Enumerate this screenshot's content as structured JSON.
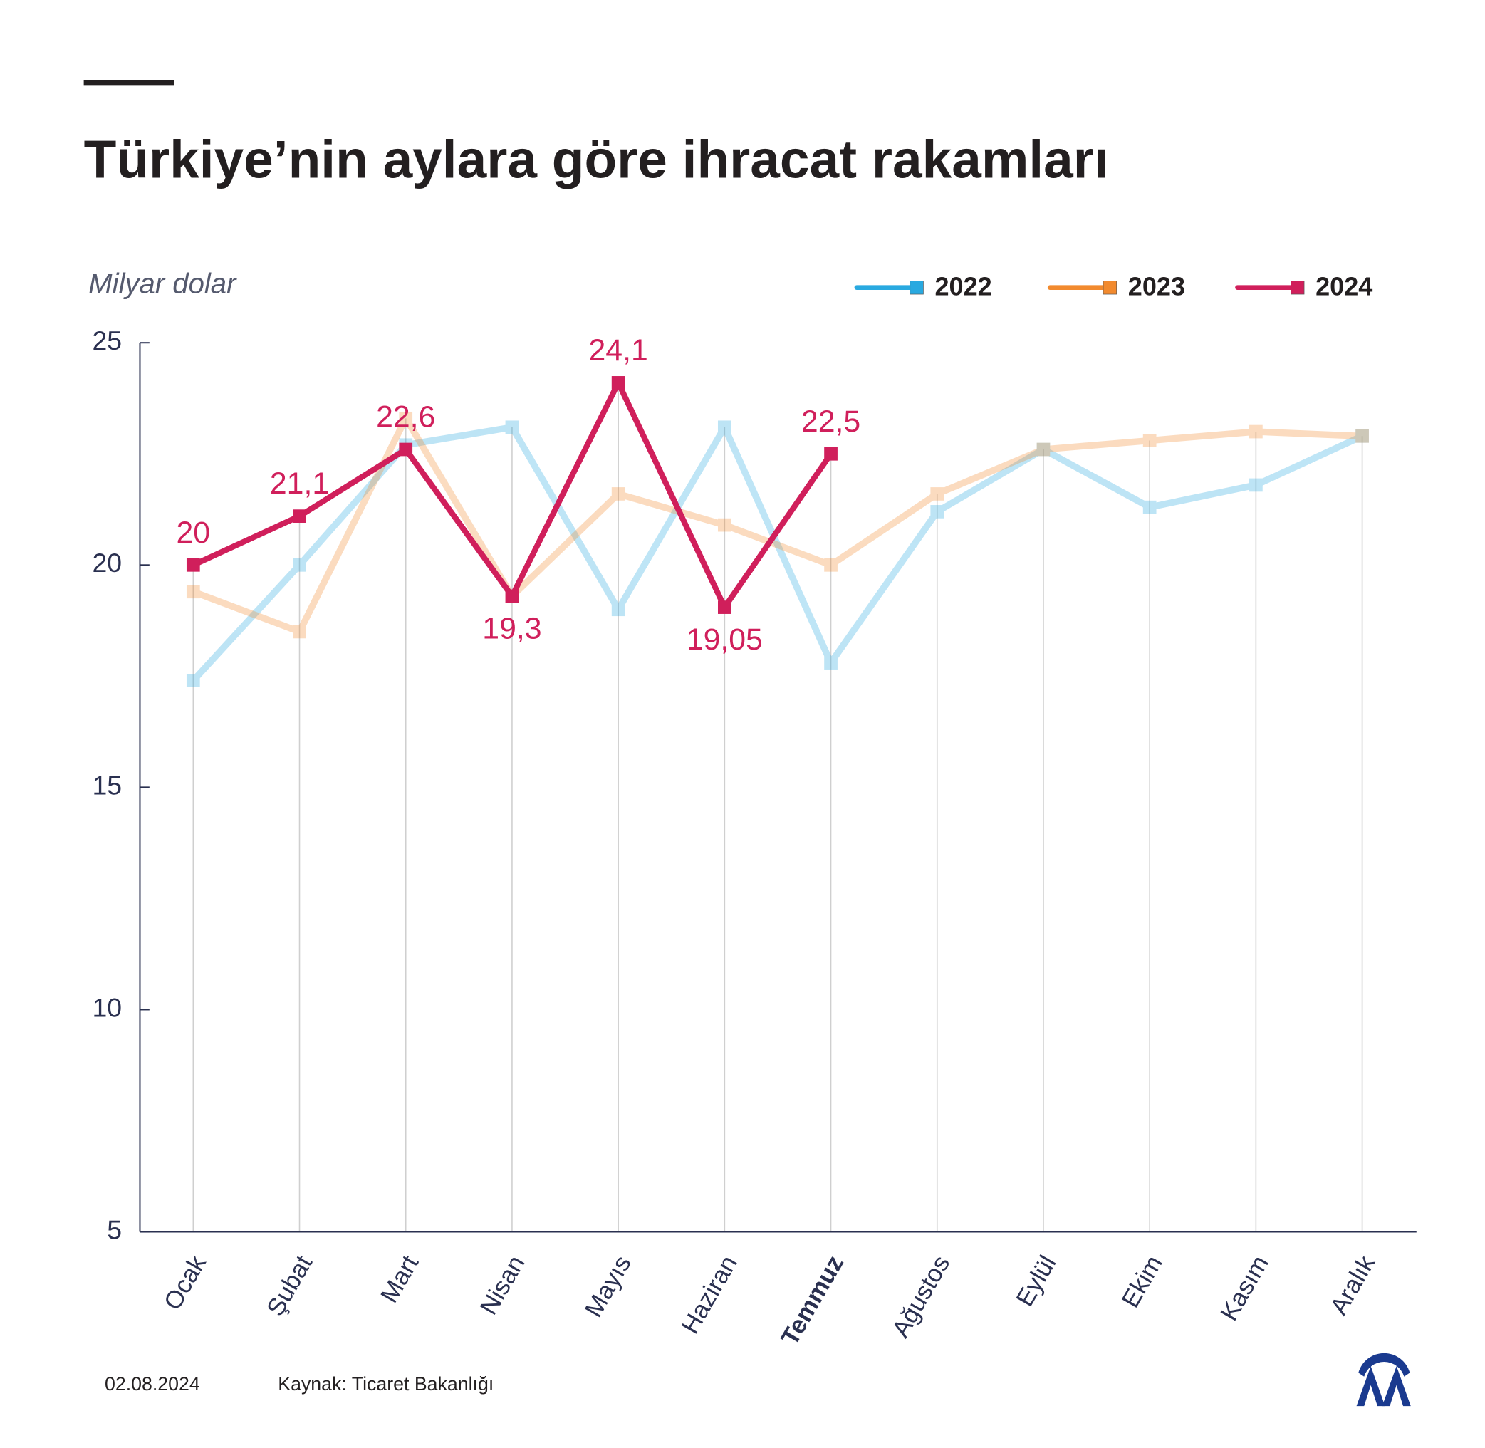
{
  "chart_data": {
    "type": "line",
    "title": "Türkiye’nin aylara göre ihracat rakamları",
    "y_axis_label": "Milyar dolar",
    "categories": [
      "Ocak",
      "Şubat",
      "Mart",
      "Nisan",
      "Mayıs",
      "Haziran",
      "Temmuz",
      "Ağustos",
      "Eylül",
      "Ekim",
      "Kasım",
      "Aralık"
    ],
    "series": [
      {
        "name": "2022",
        "color": "#29a9e0",
        "values": [
          17.4,
          20.0,
          22.7,
          23.1,
          19.0,
          23.1,
          17.8,
          21.2,
          22.6,
          21.3,
          21.8,
          22.9
        ]
      },
      {
        "name": "2023",
        "color": "#f28a2e",
        "values": [
          19.4,
          18.5,
          23.3,
          19.3,
          21.6,
          20.9,
          20.0,
          21.6,
          22.6,
          22.8,
          23.0,
          22.9
        ]
      },
      {
        "name": "2024",
        "color": "#d01f5b",
        "values": [
          20,
          21.1,
          22.6,
          19.3,
          24.1,
          19.05,
          22.5,
          null,
          null,
          null,
          null,
          null
        ],
        "value_labels": [
          "20",
          "21,1",
          "22,6",
          "19,3",
          "24,1",
          "19,05",
          "22,5",
          null,
          null,
          null,
          null,
          null
        ]
      }
    ],
    "ylim": [
      5,
      25
    ],
    "yticks": [
      5,
      10,
      15,
      20,
      25
    ],
    "legend": "top-right",
    "date": "02.08.2024",
    "source": "Kaynak: Ticaret Bakanlığı"
  }
}
